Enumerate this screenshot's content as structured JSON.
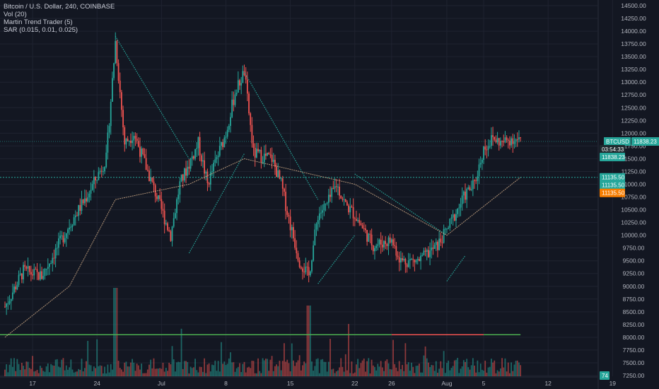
{
  "legend": {
    "symbol_line": "Bitcoin / U.S. Dollar, 240, COINBASE",
    "vol_line": "Vol (20)",
    "martin_line": "Martin Trend Trader (5)",
    "sar_line": "SAR (0.015, 0.01, 0.025)"
  },
  "colors": {
    "background": "#131722",
    "grid": "#1f2330",
    "up": "#26a69a",
    "down": "#ef5350",
    "sar": "#26a69a",
    "trend_line": "#d9b38c",
    "price_line": "#26a69a",
    "orange_tag": "#f57c00"
  },
  "price_scale": {
    "ticks": [
      "14500.00",
      "14250.00",
      "14000.00",
      "13750.00",
      "13500.00",
      "13250.00",
      "13000.00",
      "12750.00",
      "12500.00",
      "12250.00",
      "12000.00",
      "11750.00",
      "11500.00",
      "11250.00",
      "11000.00",
      "10750.00",
      "10500.00",
      "10250.00",
      "10000.00",
      "9750.00",
      "9500.00",
      "9250.00",
      "9000.00",
      "8750.00",
      "8500.00",
      "8250.00",
      "8000.00",
      "7750.00",
      "7500.00",
      "7250.00"
    ]
  },
  "tags": {
    "btcusd_label": "BTCUSD",
    "last_price": "11838.23",
    "countdown": "03:54:33",
    "ma_value": "11838.23",
    "level_1": "11135.50",
    "level_2": "11135.50",
    "level_3": "11135.50",
    "bottom_value": "74"
  },
  "time_scale": {
    "ticks": [
      "17",
      "24",
      "Jul",
      "8",
      "15",
      "22",
      "26",
      "Aug",
      "5",
      "12",
      "19"
    ]
  },
  "chart_data": {
    "type": "candlestick",
    "symbol": "Bitcoin / U.S. Dollar",
    "interval": "240",
    "exchange": "COINBASE",
    "ylim": [
      7200,
      14650
    ],
    "last_price": 11838.23,
    "horizontal_levels": [
      11135.5,
      8050
    ],
    "price_path_keypoints": [
      {
        "date": "Jun 14",
        "close": 8600
      },
      {
        "date": "Jun 16",
        "close": 9300
      },
      {
        "date": "Jun 18",
        "close": 9200
      },
      {
        "date": "Jun 21",
        "close": 10200
      },
      {
        "date": "Jun 23",
        "close": 10800
      },
      {
        "date": "Jun 25",
        "close": 11500
      },
      {
        "date": "Jun 26",
        "close": 13800
      },
      {
        "date": "Jun 27",
        "close": 11800
      },
      {
        "date": "Jun 28",
        "close": 12000
      },
      {
        "date": "Jun 29",
        "close": 11500
      },
      {
        "date": "Jun 30",
        "close": 11000
      },
      {
        "date": "Jul 2",
        "close": 10000
      },
      {
        "date": "Jul 3",
        "close": 11000
      },
      {
        "date": "Jul 5",
        "close": 11800
      },
      {
        "date": "Jul 6",
        "close": 11000
      },
      {
        "date": "Jul 8",
        "close": 12000
      },
      {
        "date": "Jul 9",
        "close": 12800
      },
      {
        "date": "Jul 10",
        "close": 13200
      },
      {
        "date": "Jul 11",
        "close": 11600
      },
      {
        "date": "Jul 13",
        "close": 11500
      },
      {
        "date": "Jul 14",
        "close": 11000
      },
      {
        "date": "Jul 15",
        "close": 10200
      },
      {
        "date": "Jul 16",
        "close": 9500
      },
      {
        "date": "Jul 17",
        "close": 9200
      },
      {
        "date": "Jul 18",
        "close": 10400
      },
      {
        "date": "Jul 19",
        "close": 10600
      },
      {
        "date": "Jul 20",
        "close": 11000
      },
      {
        "date": "Jul 21",
        "close": 10600
      },
      {
        "date": "Jul 22",
        "close": 10400
      },
      {
        "date": "Jul 24",
        "close": 9800
      },
      {
        "date": "Jul 26",
        "close": 9900
      },
      {
        "date": "Jul 27",
        "close": 9500
      },
      {
        "date": "Jul 29",
        "close": 9500
      },
      {
        "date": "Jul 31",
        "close": 9800
      },
      {
        "date": "Aug 1",
        "close": 10100
      },
      {
        "date": "Aug 3",
        "close": 10800
      },
      {
        "date": "Aug 4",
        "close": 11000
      },
      {
        "date": "Aug 5",
        "close": 11700
      },
      {
        "date": "Aug 6",
        "close": 11900
      },
      {
        "date": "Aug 7",
        "close": 11800
      },
      {
        "date": "Aug 8",
        "close": 11900
      },
      {
        "date": "Aug 9",
        "close": 11838
      }
    ],
    "sar_keypoints": [
      {
        "date": "Jun 26",
        "value": 13900
      },
      {
        "date": "Jul 4",
        "value": 11500
      },
      {
        "date": "Jul 4",
        "value": 9650
      },
      {
        "date": "Jul 10",
        "value": 11600
      },
      {
        "date": "Jul 10",
        "value": 13200
      },
      {
        "date": "Jul 18",
        "value": 10700
      },
      {
        "date": "Jul 18",
        "value": 9050
      },
      {
        "date": "Jul 22",
        "value": 10000
      },
      {
        "date": "Jul 22",
        "value": 11200
      },
      {
        "date": "Aug 1",
        "value": 10000
      },
      {
        "date": "Aug 1",
        "value": 9100
      },
      {
        "date": "Aug 3",
        "value": 9600
      }
    ],
    "trend_line_keypoints": [
      {
        "date": "Jun 14",
        "value": 8000
      },
      {
        "date": "Jun 21",
        "value": 9000
      },
      {
        "date": "Jun 26",
        "value": 10700
      },
      {
        "date": "Jul 4",
        "value": 11000
      },
      {
        "date": "Jul 10",
        "value": 11500
      },
      {
        "date": "Jul 22",
        "value": 11000
      },
      {
        "date": "Aug 1",
        "value": 10000
      },
      {
        "date": "Aug 9",
        "value": 11135
      }
    ]
  }
}
